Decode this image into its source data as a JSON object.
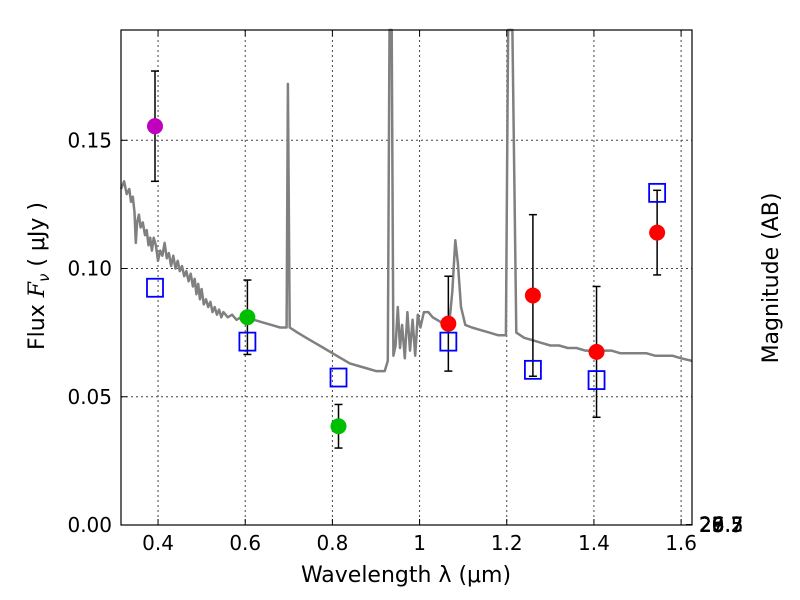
{
  "chart_data": {
    "type": "scatter",
    "title": "",
    "xlabel": "Wavelength  λ (μm)",
    "ylabel": "Flux  F_ν  ( μJy )",
    "ylabel_parts": {
      "prefix": "Flux ",
      "symbol": "F",
      "subscript": "ν",
      "suffix": "  ( μJy )"
    },
    "y2label": "Magnitude (AB)",
    "xlim": [
      0.315,
      1.625
    ],
    "ylim": [
      0.0,
      0.193
    ],
    "grid": true,
    "x_ticks": [
      {
        "value": 0.4,
        "label": "0.4"
      },
      {
        "value": 0.6,
        "label": "0.6"
      },
      {
        "value": 0.8,
        "label": "0.8"
      },
      {
        "value": 1.0,
        "label": "1"
      },
      {
        "value": 1.2,
        "label": "1.2"
      },
      {
        "value": 1.4,
        "label": "1.4"
      },
      {
        "value": 1.6,
        "label": "1.6"
      }
    ],
    "y_ticks": [
      {
        "value": 0.0,
        "label": "0.00"
      },
      {
        "value": 0.05,
        "label": "0.05"
      },
      {
        "value": 0.1,
        "label": "0.10"
      },
      {
        "value": 0.15,
        "label": "0.15"
      }
    ],
    "y2_ticks": [
      {
        "value": 25.7,
        "label": "25.7"
      },
      {
        "value": 26.0,
        "label": "26"
      },
      {
        "value": 26.2,
        "label": "26.2"
      },
      {
        "value": 26.5,
        "label": "26.5"
      },
      {
        "value": 27.0,
        "label": "27"
      },
      {
        "value": 27.5,
        "label": "27.5"
      },
      {
        "value": 28.0,
        "label": "28"
      },
      {
        "value": 29.0,
        "label": "29"
      }
    ],
    "observed_points": [
      {
        "x": 0.393,
        "y": 0.1555,
        "err": 0.0215,
        "color": "#bf00bf"
      },
      {
        "x": 0.605,
        "y": 0.081,
        "err": 0.0145,
        "color": "#00bf00"
      },
      {
        "x": 0.814,
        "y": 0.0385,
        "err": 0.0085,
        "color": "#00bf00"
      },
      {
        "x": 1.066,
        "y": 0.0785,
        "err": 0.0185,
        "color": "#ff0000"
      },
      {
        "x": 1.26,
        "y": 0.0895,
        "err": 0.0315,
        "color": "#ff0000"
      },
      {
        "x": 1.406,
        "y": 0.0675,
        "err": 0.0255,
        "color": "#ff0000"
      },
      {
        "x": 1.545,
        "y": 0.114,
        "err": 0.0165,
        "color": "#ff0000"
      }
    ],
    "model_points": [
      {
        "x": 0.393,
        "y": 0.0925
      },
      {
        "x": 0.605,
        "y": 0.0715
      },
      {
        "x": 0.814,
        "y": 0.0575
      },
      {
        "x": 1.066,
        "y": 0.0715
      },
      {
        "x": 1.26,
        "y": 0.0605
      },
      {
        "x": 1.406,
        "y": 0.0565
      },
      {
        "x": 1.545,
        "y": 0.1295
      }
    ],
    "model_spectrum": [
      [
        0.315,
        0.131
      ],
      [
        0.322,
        0.134
      ],
      [
        0.328,
        0.129
      ],
      [
        0.334,
        0.131
      ],
      [
        0.338,
        0.126
      ],
      [
        0.342,
        0.128
      ],
      [
        0.346,
        0.122
      ],
      [
        0.349,
        0.11
      ],
      [
        0.352,
        0.118
      ],
      [
        0.356,
        0.121
      ],
      [
        0.36,
        0.116
      ],
      [
        0.365,
        0.118
      ],
      [
        0.37,
        0.113
      ],
      [
        0.374,
        0.115
      ],
      [
        0.378,
        0.109
      ],
      [
        0.382,
        0.112
      ],
      [
        0.386,
        0.107
      ],
      [
        0.39,
        0.112
      ],
      [
        0.395,
        0.109
      ],
      [
        0.4,
        0.103
      ],
      [
        0.405,
        0.107
      ],
      [
        0.41,
        0.105
      ],
      [
        0.415,
        0.11
      ],
      [
        0.42,
        0.104
      ],
      [
        0.425,
        0.106
      ],
      [
        0.43,
        0.101
      ],
      [
        0.435,
        0.105
      ],
      [
        0.44,
        0.1
      ],
      [
        0.445,
        0.103
      ],
      [
        0.45,
        0.099
      ],
      [
        0.455,
        0.101
      ],
      [
        0.46,
        0.097
      ],
      [
        0.465,
        0.099
      ],
      [
        0.47,
        0.095
      ],
      [
        0.475,
        0.098
      ],
      [
        0.48,
        0.093
      ],
      [
        0.484,
        0.096
      ],
      [
        0.488,
        0.09
      ],
      [
        0.492,
        0.094
      ],
      [
        0.496,
        0.088
      ],
      [
        0.5,
        0.092
      ],
      [
        0.505,
        0.086
      ],
      [
        0.51,
        0.088
      ],
      [
        0.515,
        0.085
      ],
      [
        0.52,
        0.087
      ],
      [
        0.525,
        0.083
      ],
      [
        0.53,
        0.085
      ],
      [
        0.535,
        0.082
      ],
      [
        0.54,
        0.084
      ],
      [
        0.545,
        0.081
      ],
      [
        0.55,
        0.083
      ],
      [
        0.56,
        0.081
      ],
      [
        0.57,
        0.082
      ],
      [
        0.58,
        0.08
      ],
      [
        0.59,
        0.081
      ],
      [
        0.6,
        0.081
      ],
      [
        0.61,
        0.08
      ],
      [
        0.62,
        0.08
      ],
      [
        0.64,
        0.079
      ],
      [
        0.66,
        0.078
      ],
      [
        0.68,
        0.077
      ],
      [
        0.695,
        0.077
      ],
      [
        0.698,
        0.172
      ],
      [
        0.702,
        0.077
      ],
      [
        0.72,
        0.075
      ],
      [
        0.74,
        0.073
      ],
      [
        0.76,
        0.071
      ],
      [
        0.78,
        0.069
      ],
      [
        0.8,
        0.067
      ],
      [
        0.82,
        0.065
      ],
      [
        0.84,
        0.063
      ],
      [
        0.86,
        0.062
      ],
      [
        0.88,
        0.061
      ],
      [
        0.9,
        0.06
      ],
      [
        0.92,
        0.06
      ],
      [
        0.927,
        0.064
      ],
      [
        0.931,
        0.193
      ],
      [
        0.936,
        0.193
      ],
      [
        0.94,
        0.066
      ],
      [
        0.945,
        0.07
      ],
      [
        0.95,
        0.085
      ],
      [
        0.955,
        0.069
      ],
      [
        0.96,
        0.078
      ],
      [
        0.966,
        0.065
      ],
      [
        0.972,
        0.083
      ],
      [
        0.978,
        0.068
      ],
      [
        0.984,
        0.08
      ],
      [
        0.99,
        0.066
      ],
      [
        0.996,
        0.082
      ],
      [
        1.002,
        0.077
      ],
      [
        1.01,
        0.083
      ],
      [
        1.02,
        0.083
      ],
      [
        1.03,
        0.081
      ],
      [
        1.04,
        0.08
      ],
      [
        1.05,
        0.079
      ],
      [
        1.06,
        0.079
      ],
      [
        1.07,
        0.082
      ],
      [
        1.075,
        0.091
      ],
      [
        1.082,
        0.111
      ],
      [
        1.088,
        0.102
      ],
      [
        1.095,
        0.085
      ],
      [
        1.105,
        0.078
      ],
      [
        1.12,
        0.077
      ],
      [
        1.14,
        0.076
      ],
      [
        1.16,
        0.075
      ],
      [
        1.18,
        0.074
      ],
      [
        1.198,
        0.074
      ],
      [
        1.203,
        0.193
      ],
      [
        1.213,
        0.193
      ],
      [
        1.222,
        0.075
      ],
      [
        1.24,
        0.073
      ],
      [
        1.26,
        0.072
      ],
      [
        1.28,
        0.071
      ],
      [
        1.3,
        0.07
      ],
      [
        1.32,
        0.07
      ],
      [
        1.34,
        0.069
      ],
      [
        1.36,
        0.069
      ],
      [
        1.38,
        0.068
      ],
      [
        1.4,
        0.068
      ],
      [
        1.42,
        0.068
      ],
      [
        1.44,
        0.068
      ],
      [
        1.46,
        0.067
      ],
      [
        1.48,
        0.067
      ],
      [
        1.5,
        0.067
      ],
      [
        1.52,
        0.067
      ],
      [
        1.54,
        0.066
      ],
      [
        1.56,
        0.066
      ],
      [
        1.58,
        0.066
      ],
      [
        1.6,
        0.065
      ],
      [
        1.625,
        0.064
      ]
    ],
    "colors": {
      "spectrum": "#808080",
      "model_marker": "#0000ff",
      "errorbar": "#000000"
    }
  }
}
